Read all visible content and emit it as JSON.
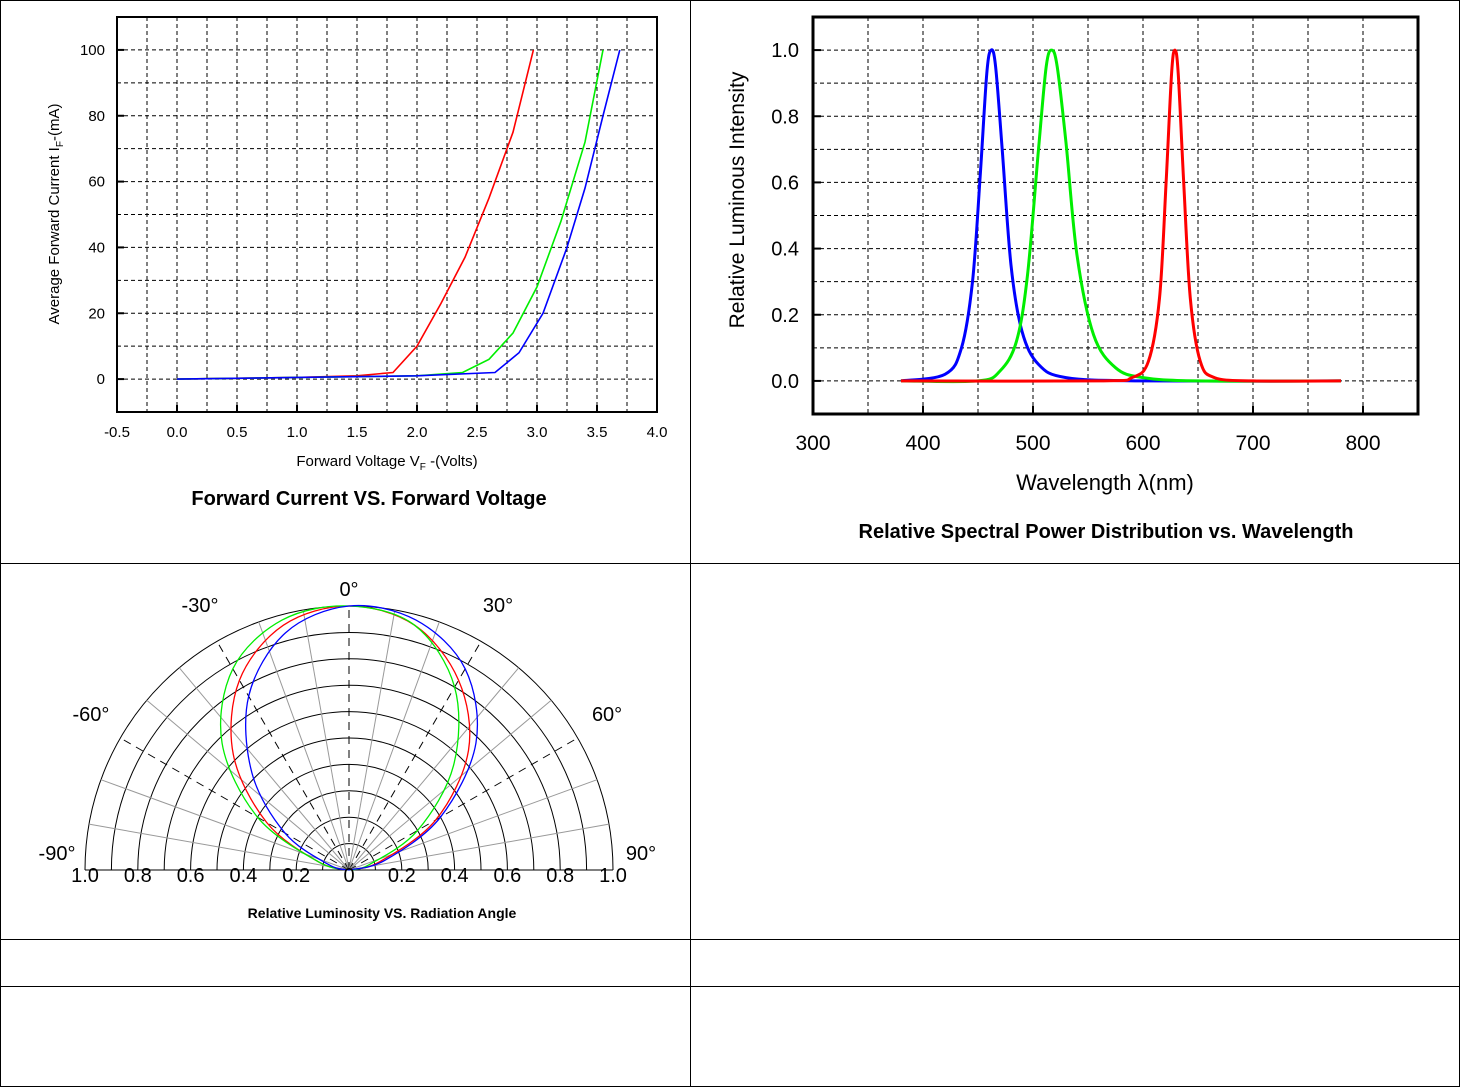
{
  "chart_data": [
    {
      "type": "line",
      "title": "Forward Current VS. Forward Voltage",
      "xlabel_prefix": "Forward Voltage V",
      "xlabel_sub": "F",
      "xlabel_suffix": " -(Volts)",
      "ylabel_prefix": "Average Forward Current I",
      "ylabel_sub": "F",
      "ylabel_suffix": "-(mA)",
      "xlim": [
        -0.5,
        4.0
      ],
      "ylim": [
        -10,
        110
      ],
      "xticks": [
        "-0.5",
        "0.0",
        "0.5",
        "1.0",
        "1.5",
        "2.0",
        "2.5",
        "3.0",
        "3.5",
        "4.0"
      ],
      "yticks": [
        "0",
        "20",
        "40",
        "60",
        "80",
        "100"
      ],
      "grid": true,
      "series": [
        {
          "color": "#ff0000",
          "x": [
            0,
            1.0,
            1.5,
            1.8,
            2.0,
            2.2,
            2.4,
            2.6,
            2.8,
            2.97
          ],
          "y": [
            0,
            0.5,
            1,
            2,
            10,
            23,
            37,
            55,
            75,
            100
          ]
        },
        {
          "color": "#00ee00",
          "x": [
            0,
            1.0,
            2.0,
            2.38,
            2.6,
            2.8,
            3.0,
            3.2,
            3.4,
            3.55
          ],
          "y": [
            0,
            0.5,
            1,
            2,
            6,
            14,
            28,
            48,
            72,
            100
          ]
        },
        {
          "color": "#0000ff",
          "x": [
            0,
            1.0,
            2.0,
            2.65,
            2.85,
            3.05,
            3.25,
            3.4,
            3.55,
            3.69
          ],
          "y": [
            0,
            0.5,
            1,
            2,
            8,
            20,
            40,
            58,
            80,
            100
          ]
        }
      ]
    },
    {
      "type": "line",
      "title": "Relative Spectral Power Distribution vs. Wavelength",
      "xlabel": "Wavelength λ(nm)",
      "ylabel": "Relative Luminous Intensity",
      "xlim": [
        300,
        850
      ],
      "ylim": [
        -0.1,
        1.1
      ],
      "xticks": [
        "300",
        "400",
        "500",
        "600",
        "700",
        "800"
      ],
      "yticks": [
        "0.0",
        "0.2",
        "0.4",
        "0.6",
        "0.8",
        "1.0"
      ],
      "grid": true,
      "series": [
        {
          "color": "#0000ff",
          "x": [
            380,
            420,
            435,
            445,
            452,
            458,
            462,
            466,
            472,
            480,
            490,
            505,
            530,
            600,
            780
          ],
          "y": [
            0,
            0.02,
            0.1,
            0.3,
            0.62,
            0.93,
            1.0,
            0.95,
            0.7,
            0.35,
            0.15,
            0.05,
            0.01,
            0,
            0
          ]
        },
        {
          "color": "#00ee00",
          "x": [
            380,
            450,
            470,
            485,
            495,
            505,
            512,
            517,
            522,
            530,
            540,
            555,
            575,
            600,
            650,
            780
          ],
          "y": [
            0,
            0,
            0.03,
            0.12,
            0.32,
            0.7,
            0.95,
            1.0,
            0.95,
            0.72,
            0.38,
            0.14,
            0.04,
            0.01,
            0,
            0
          ]
        },
        {
          "color": "#ff0000",
          "x": [
            380,
            560,
            590,
            605,
            615,
            621,
            626,
            629,
            632,
            637,
            643,
            652,
            665,
            700,
            780
          ],
          "y": [
            0,
            0,
            0.01,
            0.06,
            0.25,
            0.6,
            0.93,
            1.0,
            0.93,
            0.6,
            0.25,
            0.06,
            0.01,
            0,
            0
          ]
        }
      ]
    },
    {
      "type": "polar",
      "title": "Relative Luminosity VS. Radiation Angle",
      "angle_labels": [
        "-90°",
        "-60°",
        "-30°",
        "0°",
        "30°",
        "60°",
        "90°"
      ],
      "radial_labels": [
        "1.0",
        "0.8",
        "0.6",
        "0.4",
        "0.2",
        "0",
        "0.2",
        "0.4",
        "0.6",
        "0.8",
        "1.0"
      ],
      "rlim": [
        0,
        1.0
      ],
      "series": [
        {
          "color": "#ff0000",
          "theta": [
            -90,
            -75,
            -60,
            -45,
            -30,
            -15,
            0,
            15,
            30,
            45,
            60,
            75,
            90
          ],
          "r": [
            0,
            0.12,
            0.36,
            0.62,
            0.83,
            0.96,
            1.0,
            0.96,
            0.83,
            0.64,
            0.38,
            0.12,
            0
          ]
        },
        {
          "color": "#00ee00",
          "theta": [
            -90,
            -75,
            -60,
            -45,
            -30,
            -15,
            0,
            15,
            30,
            45,
            60,
            75,
            90
          ],
          "r": [
            0,
            0.12,
            0.4,
            0.68,
            0.88,
            0.98,
            1.0,
            0.96,
            0.8,
            0.56,
            0.3,
            0.08,
            0
          ]
        },
        {
          "color": "#0000ff",
          "theta": [
            -90,
            -75,
            -60,
            -45,
            -30,
            -15,
            0,
            15,
            30,
            45,
            60,
            75,
            90
          ],
          "r": [
            0,
            0.08,
            0.28,
            0.52,
            0.76,
            0.93,
            1.0,
            0.98,
            0.88,
            0.68,
            0.4,
            0.14,
            0
          ]
        }
      ]
    }
  ]
}
